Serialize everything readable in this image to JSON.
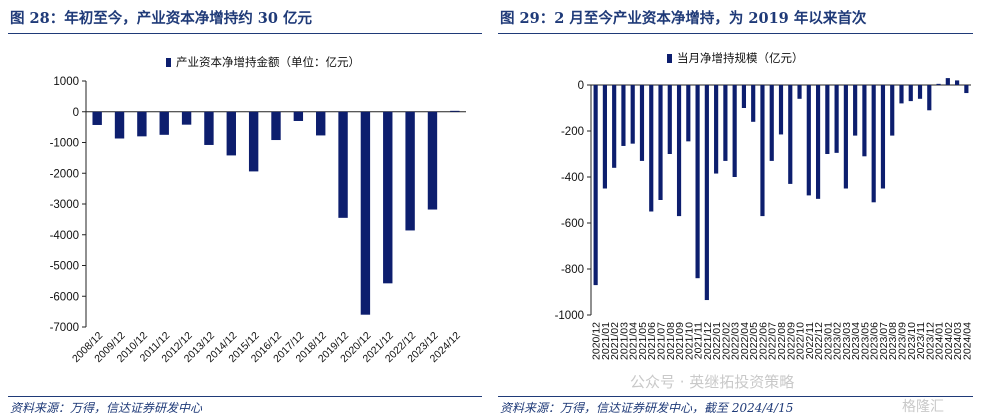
{
  "left": {
    "title": "图 28：年初至今，产业资本净增持约 30 亿元",
    "source": "资料来源：万得，信达证券研发中心"
  },
  "right": {
    "title": "图 29：2 月至今产业资本净增持，为 2019 年以来首次",
    "source": "资料来源：万得，信达证券研发中心，截至 2024/4/15"
  },
  "watermark": {
    "wechat": "公众号 · 英继拓投资策略",
    "brand": "格隆汇"
  },
  "colors": {
    "bar": "#0d1e6e",
    "text": "#1f3a78"
  },
  "chart_data": [
    {
      "type": "bar",
      "title": "",
      "categories": [
        "2008/12",
        "2009/12",
        "2010/12",
        "2011/12",
        "2012/12",
        "2013/12",
        "2014/12",
        "2015/12",
        "2016/12",
        "2017/12",
        "2018/12",
        "2019/12",
        "2020/12",
        "2021/12",
        "2022/12",
        "2023/12",
        "2024/12"
      ],
      "series": [
        {
          "name": "产业资本净增持金额（单位：亿元）",
          "values": [
            -430,
            -870,
            -800,
            -750,
            -420,
            -1080,
            -1420,
            -1940,
            -920,
            -300,
            -770,
            -3450,
            -6600,
            -5580,
            -3860,
            -3180,
            30
          ]
        }
      ],
      "ylim": [
        -7000,
        1000
      ],
      "yticks": [
        1000,
        0,
        -1000,
        -2000,
        -3000,
        -4000,
        -5000,
        -6000,
        -7000
      ],
      "legend_position": "top"
    },
    {
      "type": "bar",
      "title": "",
      "categories": [
        "2020/12",
        "2021/01",
        "2021/02",
        "2021/03",
        "2021/04",
        "2021/05",
        "2021/06",
        "2021/07",
        "2021/08",
        "2021/09",
        "2021/10",
        "2021/11",
        "2021/12",
        "2022/01",
        "2022/02",
        "2022/03",
        "2022/04",
        "2022/05",
        "2022/06",
        "2022/07",
        "2022/08",
        "2022/09",
        "2022/10",
        "2022/11",
        "2022/12",
        "2023/01",
        "2023/02",
        "2023/03",
        "2023/04",
        "2023/05",
        "2023/06",
        "2023/07",
        "2023/08",
        "2023/09",
        "2023/10",
        "2023/11",
        "2023/12",
        "2024/01",
        "2024/02",
        "2024/03",
        "2024/04"
      ],
      "series": [
        {
          "name": "当月净增持规模（亿元）",
          "values": [
            -870,
            -450,
            -360,
            -265,
            -255,
            -330,
            -550,
            -500,
            -300,
            -570,
            -245,
            -840,
            -935,
            -385,
            -330,
            -400,
            -100,
            -160,
            -570,
            -330,
            -215,
            -430,
            -60,
            -480,
            -495,
            -300,
            -295,
            -450,
            -220,
            -310,
            -510,
            -450,
            -220,
            -80,
            -70,
            -60,
            -110,
            5,
            30,
            20,
            -35
          ]
        }
      ],
      "ylim": [
        -1000,
        0
      ],
      "yticks": [
        0,
        -200,
        -400,
        -600,
        -800,
        -1000
      ],
      "legend_position": "top"
    }
  ]
}
